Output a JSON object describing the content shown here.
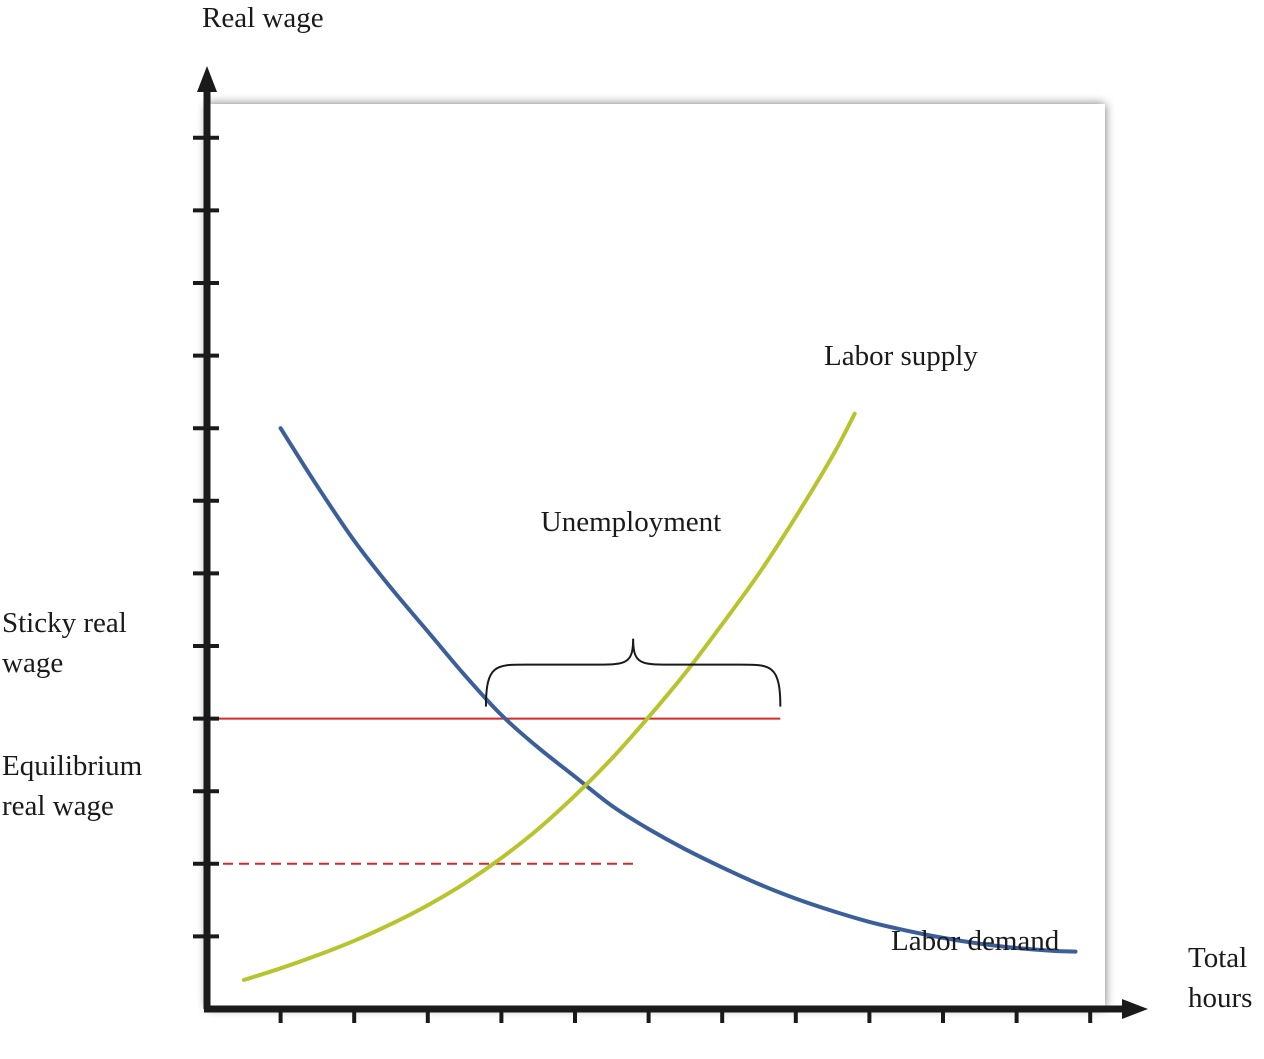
{
  "chart_data": {
    "type": "line",
    "xlabel": [
      "Total",
      "hours"
    ],
    "ylabel": "Real wage",
    "x_tick_count": 12,
    "y_tick_count": 12,
    "grid": false,
    "series": [
      {
        "name": "Labor demand",
        "color": "#3a5f9a",
        "x": [
          1.0,
          1.5,
          2.0,
          2.5,
          3.0,
          3.5,
          4.0,
          4.5,
          5.0,
          5.5,
          6.0,
          6.5,
          7.0,
          7.5,
          8.0,
          8.5,
          9.0,
          9.5,
          10.0,
          10.5,
          11.0,
          11.5,
          11.8
        ],
        "y": [
          8.0,
          7.2,
          6.45,
          5.8,
          5.2,
          4.6,
          4.05,
          3.6,
          3.2,
          2.8,
          2.48,
          2.2,
          1.95,
          1.72,
          1.52,
          1.35,
          1.2,
          1.08,
          0.98,
          0.9,
          0.84,
          0.8,
          0.79
        ]
      },
      {
        "name": "Labor supply",
        "color": "#b8c42e",
        "x": [
          0.5,
          1.0,
          1.5,
          2.0,
          2.5,
          3.0,
          3.5,
          4.0,
          4.5,
          5.0,
          5.5,
          6.0,
          6.5,
          7.0,
          7.5,
          8.0,
          8.5,
          8.8
        ],
        "y": [
          0.4,
          0.56,
          0.74,
          0.94,
          1.17,
          1.43,
          1.73,
          2.08,
          2.48,
          2.94,
          3.45,
          4.02,
          4.63,
          5.3,
          6.0,
          6.78,
          7.62,
          8.2
        ]
      }
    ],
    "reference_lines": [
      {
        "label": [
          "Sticky real",
          "wage"
        ],
        "y": 4.0,
        "x_end": 7.79,
        "style": "solid",
        "color": "#d42a2a"
      },
      {
        "label": [
          "Equilibrium",
          "real wage"
        ],
        "y": 2.0,
        "x_end": 5.79,
        "style": "dashed",
        "color": "#d42a2a"
      }
    ],
    "annotations": [
      {
        "text": "Unemployment",
        "x_from": 3.79,
        "x_to": 7.79,
        "y": 4.0,
        "kind": "brace"
      }
    ]
  },
  "colors": {
    "axis": "#1a1a1a",
    "plot_bg": "#ffffff",
    "shadow": "#6b6b6b"
  }
}
